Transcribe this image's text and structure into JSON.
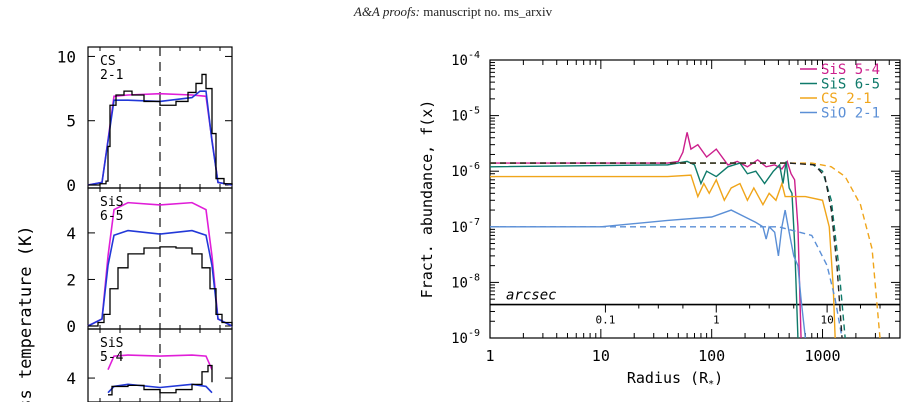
{
  "header": {
    "journal": "A&A proofs:",
    "rest": " manuscript no. ms_arxiv"
  },
  "chart_data": [
    {
      "type": "line",
      "panels": [
        {
          "label_line1": "CS",
          "label_line2": "2-1",
          "ylim": [
            0,
            10.5
          ],
          "yticks": [
            "0",
            "5",
            "10"
          ],
          "yticks_values": [
            0,
            5,
            10
          ],
          "observed": [
            [
              -1.8,
              0
            ],
            [
              -1.5,
              0.1
            ],
            [
              -1.35,
              0.3
            ],
            [
              -1.3,
              3.0
            ],
            [
              -1.25,
              6.2
            ],
            [
              -1.1,
              7.0
            ],
            [
              -0.9,
              7.3
            ],
            [
              -0.7,
              7.0
            ],
            [
              -0.4,
              6.5
            ],
            [
              0,
              6.2
            ],
            [
              0.4,
              6.5
            ],
            [
              0.7,
              7.2
            ],
            [
              0.9,
              7.9
            ],
            [
              1.05,
              8.6
            ],
            [
              1.15,
              7.5
            ],
            [
              1.3,
              4.0
            ],
            [
              1.4,
              0.5
            ],
            [
              1.6,
              0.1
            ],
            [
              1.8,
              0
            ]
          ],
          "model_magenta": [
            [
              -1.8,
              0
            ],
            [
              -1.45,
              0.2
            ],
            [
              -1.3,
              3.5
            ],
            [
              -1.15,
              6.9
            ],
            [
              -0.8,
              7.0
            ],
            [
              0,
              7.1
            ],
            [
              0.8,
              7.0
            ],
            [
              1.15,
              6.9
            ],
            [
              1.3,
              3.5
            ],
            [
              1.45,
              0.2
            ],
            [
              1.8,
              0
            ]
          ],
          "model_blue": [
            [
              -1.8,
              0
            ],
            [
              -1.45,
              0.2
            ],
            [
              -1.3,
              3.4
            ],
            [
              -1.15,
              6.6
            ],
            [
              -0.8,
              6.6
            ],
            [
              0,
              6.5
            ],
            [
              0.8,
              6.8
            ],
            [
              1.0,
              7.3
            ],
            [
              1.15,
              7.3
            ],
            [
              1.3,
              3.4
            ],
            [
              1.45,
              0.2
            ],
            [
              1.8,
              0
            ]
          ]
        },
        {
          "label_line1": "SiS",
          "label_line2": "6-5",
          "ylim": [
            0,
            5.8
          ],
          "yticks": [
            "0",
            "2",
            "4"
          ],
          "yticks_values": [
            0,
            2,
            4
          ],
          "observed": [
            [
              -1.8,
              0
            ],
            [
              -1.55,
              0.15
            ],
            [
              -1.4,
              0.5
            ],
            [
              -1.25,
              1.6
            ],
            [
              -1.05,
              2.5
            ],
            [
              -0.8,
              3.1
            ],
            [
              -0.4,
              3.35
            ],
            [
              0,
              3.4
            ],
            [
              0.4,
              3.35
            ],
            [
              0.8,
              3.1
            ],
            [
              1.05,
              2.5
            ],
            [
              1.25,
              1.6
            ],
            [
              1.4,
              0.5
            ],
            [
              1.55,
              0.15
            ],
            [
              1.8,
              0
            ]
          ],
          "model_magenta": [
            [
              -1.8,
              0
            ],
            [
              -1.45,
              0.3
            ],
            [
              -1.3,
              3.0
            ],
            [
              -1.15,
              5.0
            ],
            [
              -0.8,
              5.3
            ],
            [
              0,
              5.2
            ],
            [
              0.8,
              5.3
            ],
            [
              1.15,
              5.0
            ],
            [
              1.3,
              3.0
            ],
            [
              1.45,
              0.3
            ],
            [
              1.8,
              0
            ]
          ],
          "model_blue": [
            [
              -1.8,
              0
            ],
            [
              -1.45,
              0.3
            ],
            [
              -1.3,
              2.6
            ],
            [
              -1.15,
              3.9
            ],
            [
              -0.8,
              4.1
            ],
            [
              0,
              3.95
            ],
            [
              0.8,
              4.1
            ],
            [
              1.15,
              3.9
            ],
            [
              1.3,
              2.6
            ],
            [
              1.45,
              0.3
            ],
            [
              1.8,
              0
            ]
          ]
        },
        {
          "label_line1": "SiS",
          "label_line2": "5-4",
          "ylim": [
            3,
            6.2
          ],
          "yticks": [
            "4"
          ],
          "yticks_values": [
            4
          ],
          "observed": [
            [
              -1.3,
              3.2
            ],
            [
              -1.2,
              3.6
            ],
            [
              -0.8,
              3.65
            ],
            [
              -0.4,
              3.45
            ],
            [
              0,
              3.3
            ],
            [
              0.4,
              3.45
            ],
            [
              0.8,
              3.7
            ],
            [
              1.05,
              4.3
            ],
            [
              1.2,
              4.6
            ],
            [
              1.3,
              3.8
            ]
          ],
          "model_magenta": [
            [
              -1.3,
              4.4
            ],
            [
              -1.15,
              5.05
            ],
            [
              -0.8,
              5.1
            ],
            [
              0,
              5.05
            ],
            [
              0.8,
              5.1
            ],
            [
              1.15,
              5.05
            ],
            [
              1.3,
              4.4
            ]
          ],
          "model_blue": [
            [
              -1.3,
              3.3
            ],
            [
              -1.15,
              3.6
            ],
            [
              -0.8,
              3.7
            ],
            [
              0,
              3.55
            ],
            [
              0.8,
              3.7
            ],
            [
              1.15,
              3.6
            ],
            [
              1.3,
              3.3
            ]
          ]
        }
      ],
      "ylabel": "ess temperature (K)"
    },
    {
      "type": "line",
      "xlabel": "Radius (R",
      "xlabel_sub": "*",
      "xlabel_close": ")",
      "ylabel": "Fract. abundance, f(x)",
      "xscale": "log",
      "yscale": "log",
      "xlim": [
        1,
        5000
      ],
      "ylim": [
        1e-09,
        0.0001
      ],
      "xticks": [
        "1",
        "10",
        "100",
        "1000"
      ],
      "xticks_values": [
        1,
        10,
        100,
        1000
      ],
      "yticks_mant": [
        "10",
        "10",
        "10",
        "10",
        "10",
        "10"
      ],
      "yticks_exp": [
        "-9",
        "-8",
        "-7",
        "-6",
        "-5",
        "-4"
      ],
      "yticks_values": [
        1e-09,
        1e-08,
        1e-07,
        1e-06,
        1e-05,
        0.0001
      ],
      "arcsec_label": "arcsec",
      "arcsec_ticks": [
        "0.1",
        "1",
        "10"
      ],
      "arcsec_ticks_radius": [
        11,
        110,
        1100
      ],
      "legend_position": "top-right",
      "series": [
        {
          "name": "SiS 5-4",
          "color": "#cc1f8c",
          "solid": [
            [
              1,
              1.4e-06
            ],
            [
              40,
              1.4e-06
            ],
            [
              50,
              1.5e-06
            ],
            [
              55,
              2.2e-06
            ],
            [
              60,
              5e-06
            ],
            [
              65,
              2.5e-06
            ],
            [
              75,
              3e-06
            ],
            [
              90,
              1.8e-06
            ],
            [
              110,
              2.5e-06
            ],
            [
              140,
              1.3e-06
            ],
            [
              170,
              1.5e-06
            ],
            [
              210,
              1.2e-06
            ],
            [
              260,
              1.6e-06
            ],
            [
              310,
              1.2e-06
            ],
            [
              370,
              1.3e-06
            ],
            [
              430,
              1.1e-06
            ],
            [
              480,
              1.5e-06
            ],
            [
              520,
              9e-07
            ],
            [
              560,
              7e-07
            ],
            [
              600,
              1e-07
            ],
            [
              640,
              1e-09
            ]
          ],
          "dashed": []
        },
        {
          "name": "SiS 6-5",
          "color": "#0f7a6a",
          "solid": [
            [
              1,
              1.2e-06
            ],
            [
              40,
              1.3e-06
            ],
            [
              60,
              1.5e-06
            ],
            [
              70,
              1.3e-06
            ],
            [
              80,
              6e-07
            ],
            [
              90,
              1e-06
            ],
            [
              110,
              8e-07
            ],
            [
              140,
              1.2e-06
            ],
            [
              180,
              1.4e-06
            ],
            [
              210,
              9e-07
            ],
            [
              250,
              1e-06
            ],
            [
              300,
              6e-07
            ],
            [
              360,
              1e-06
            ],
            [
              410,
              1.3e-06
            ],
            [
              440,
              6e-07
            ],
            [
              470,
              1.5e-06
            ],
            [
              500,
              5e-07
            ],
            [
              530,
              4e-07
            ],
            [
              560,
              5e-08
            ],
            [
              600,
              1e-09
            ]
          ],
          "dashed": [
            [
              1,
              1.4e-06
            ],
            [
              500,
              1.4e-06
            ],
            [
              800,
              1.35e-06
            ],
            [
              1000,
              1e-06
            ],
            [
              1200,
              3e-07
            ],
            [
              1400,
              2e-08
            ],
            [
              1600,
              1e-09
            ]
          ]
        },
        {
          "name": "CS 2-1",
          "color": "#f0a51a",
          "solid": [
            [
              1,
              8e-07
            ],
            [
              40,
              8e-07
            ],
            [
              65,
              8.5e-07
            ],
            [
              75,
              3.5e-07
            ],
            [
              85,
              6e-07
            ],
            [
              95,
              4e-07
            ],
            [
              110,
              7e-07
            ],
            [
              130,
              3e-07
            ],
            [
              150,
              5e-07
            ],
            [
              180,
              6e-07
            ],
            [
              210,
              3e-07
            ],
            [
              240,
              5e-07
            ],
            [
              290,
              2.5e-07
            ],
            [
              330,
              4e-07
            ],
            [
              380,
              3e-07
            ],
            [
              430,
              6e-07
            ],
            [
              460,
              3.5e-07
            ],
            [
              500,
              3.5e-07
            ],
            [
              700,
              3.5e-07
            ],
            [
              1000,
              3e-07
            ],
            [
              1150,
              1e-07
            ],
            [
              1250,
              8e-09
            ],
            [
              1300,
              1e-09
            ]
          ],
          "dashed": [
            [
              1,
              1.4e-06
            ],
            [
              800,
              1.4e-06
            ],
            [
              1200,
              1.2e-06
            ],
            [
              1600,
              8e-07
            ],
            [
              2200,
              2.5e-07
            ],
            [
              2800,
              4e-08
            ],
            [
              3300,
              1e-09
            ]
          ]
        },
        {
          "name": "SiO 2-1",
          "color": "#5b8fd6",
          "solid": [
            [
              1,
              1e-07
            ],
            [
              10,
              1e-07
            ],
            [
              40,
              1.3e-07
            ],
            [
              100,
              1.5e-07
            ],
            [
              150,
              2e-07
            ],
            [
              200,
              1.5e-07
            ],
            [
              250,
              1.2e-07
            ],
            [
              290,
              1e-07
            ],
            [
              310,
              6e-08
            ],
            [
              330,
              1e-07
            ],
            [
              370,
              8e-08
            ],
            [
              400,
              3e-08
            ],
            [
              430,
              1e-07
            ],
            [
              460,
              2e-07
            ],
            [
              500,
              8e-08
            ],
            [
              550,
              3e-08
            ],
            [
              600,
              2e-08
            ],
            [
              640,
              5e-09
            ],
            [
              700,
              1e-09
            ]
          ],
          "dashed": [
            [
              1,
              1e-07
            ],
            [
              20,
              1e-07
            ],
            [
              400,
              1e-07
            ],
            [
              800,
              7e-08
            ],
            [
              1100,
              2e-08
            ],
            [
              1300,
              5e-09
            ],
            [
              1500,
              1e-09
            ]
          ]
        },
        {
          "name": "",
          "color": "#222222",
          "solid": [],
          "dashed": [
            [
              1,
              1.4e-06
            ],
            [
              500,
              1.4e-06
            ],
            [
              850,
              1.3e-06
            ],
            [
              1050,
              8e-07
            ],
            [
              1200,
              2e-07
            ],
            [
              1350,
              2e-08
            ],
            [
              1500,
              1e-09
            ]
          ]
        }
      ]
    }
  ]
}
